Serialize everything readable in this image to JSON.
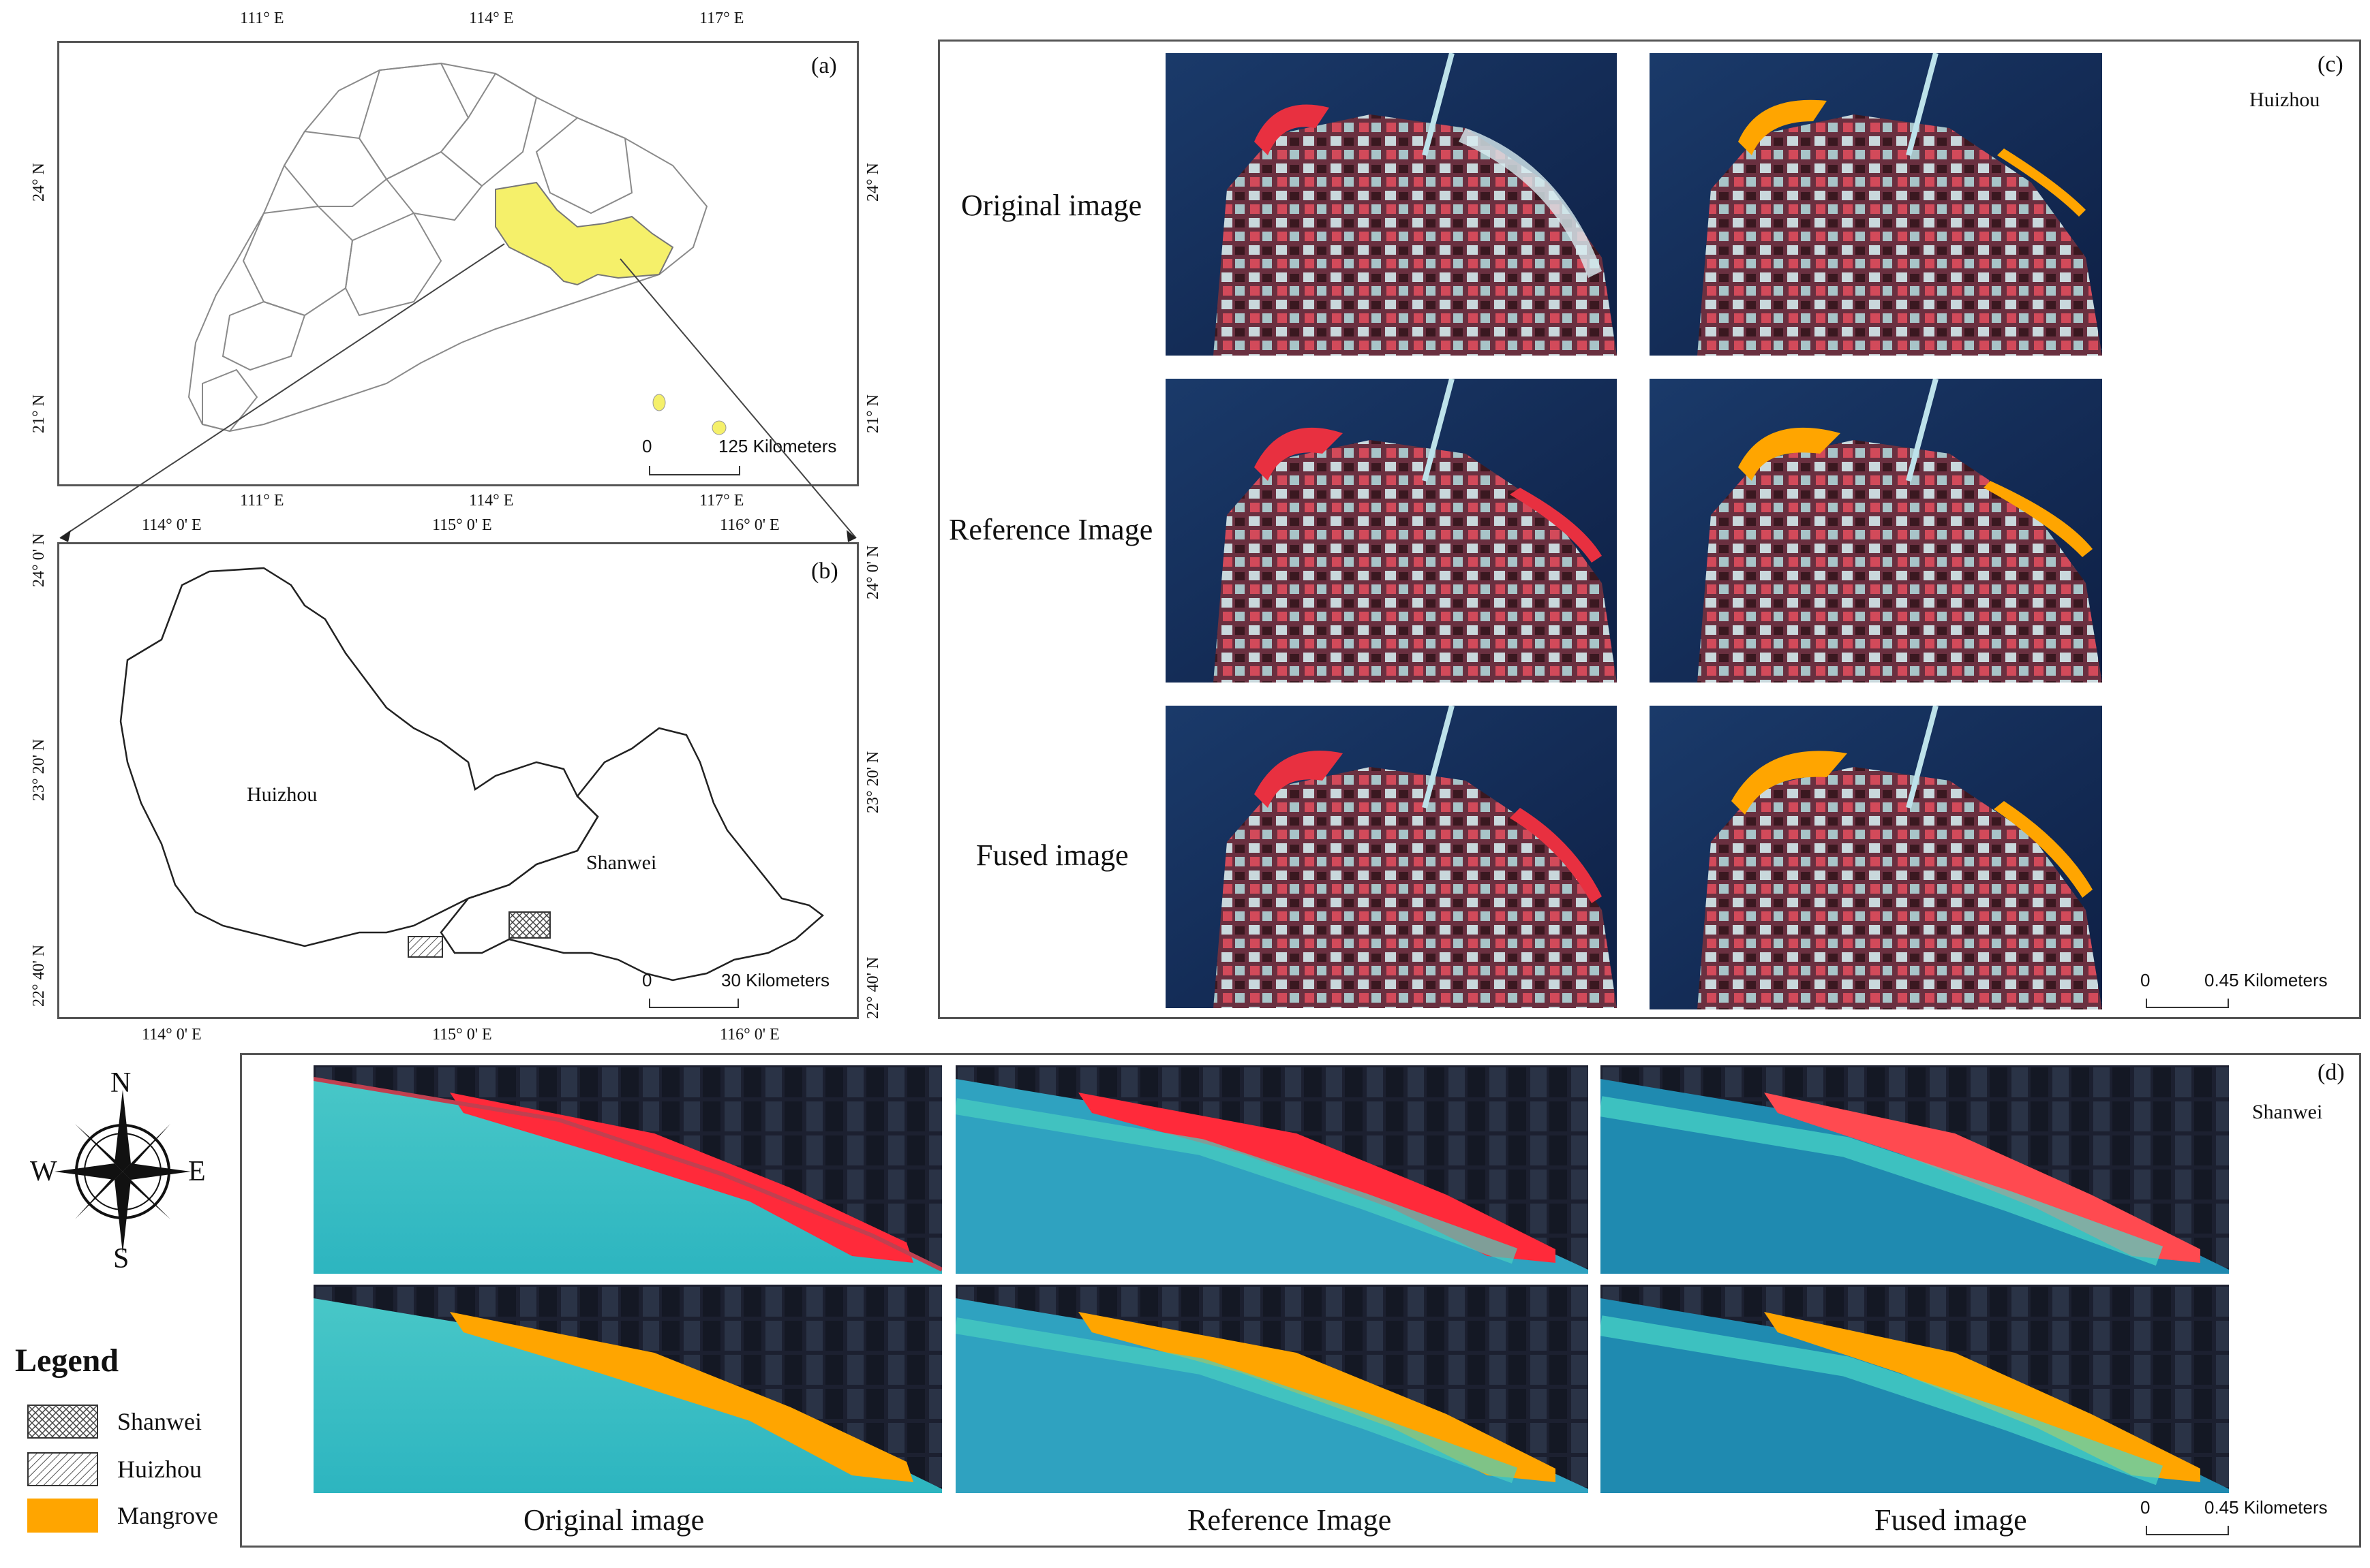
{
  "panel_a": {
    "letter": "(a)",
    "top_ticks": [
      "111° E",
      "114° E",
      "117° E"
    ],
    "bottom_ticks": [
      "111° E",
      "114° E",
      "117° E"
    ],
    "left_ticks": [
      "24° N",
      "21° N"
    ],
    "right_ticks": [
      "24° N",
      "21° N"
    ],
    "scale_zero": "0",
    "scale_label": "125 Kilometers"
  },
  "panel_b": {
    "letter": "(b)",
    "top_ticks": [
      "114° 0' E",
      "115° 0' E",
      "116° 0' E"
    ],
    "bottom_ticks": [
      "114° 0' E",
      "115° 0' E",
      "116° 0' E"
    ],
    "left_ticks": [
      "24° 0' N",
      "23° 20' N",
      "22° 40' N"
    ],
    "right_ticks": [
      "24° 0' N",
      "23° 20' N",
      "22° 40' N"
    ],
    "place_huizhou": "Huizhou",
    "place_shanwei": "Shanwei",
    "scale_zero": "0",
    "scale_label": "30 Kilometers"
  },
  "panel_c": {
    "letter": "(c)",
    "region": "Huizhou",
    "rows": [
      "Original image",
      "Reference Image",
      "Fused image"
    ],
    "scale_zero": "0",
    "scale_label": "0.45 Kilometers"
  },
  "panel_d": {
    "letter": "(d)",
    "region": "Shanwei",
    "columns": [
      "Original image",
      "Reference Image",
      "Fused image"
    ],
    "scale_zero": "0",
    "scale_label": "0.45 Kilometers"
  },
  "compass": {
    "n": "N",
    "s": "S",
    "e": "E",
    "w": "W"
  },
  "legend": {
    "title": "Legend",
    "items": [
      "Shanwei",
      "Huizhou",
      "Mangrove"
    ]
  },
  "colors": {
    "mangrove": "#ffa500",
    "highlight": "#f5f06a",
    "frame": "#555555"
  }
}
